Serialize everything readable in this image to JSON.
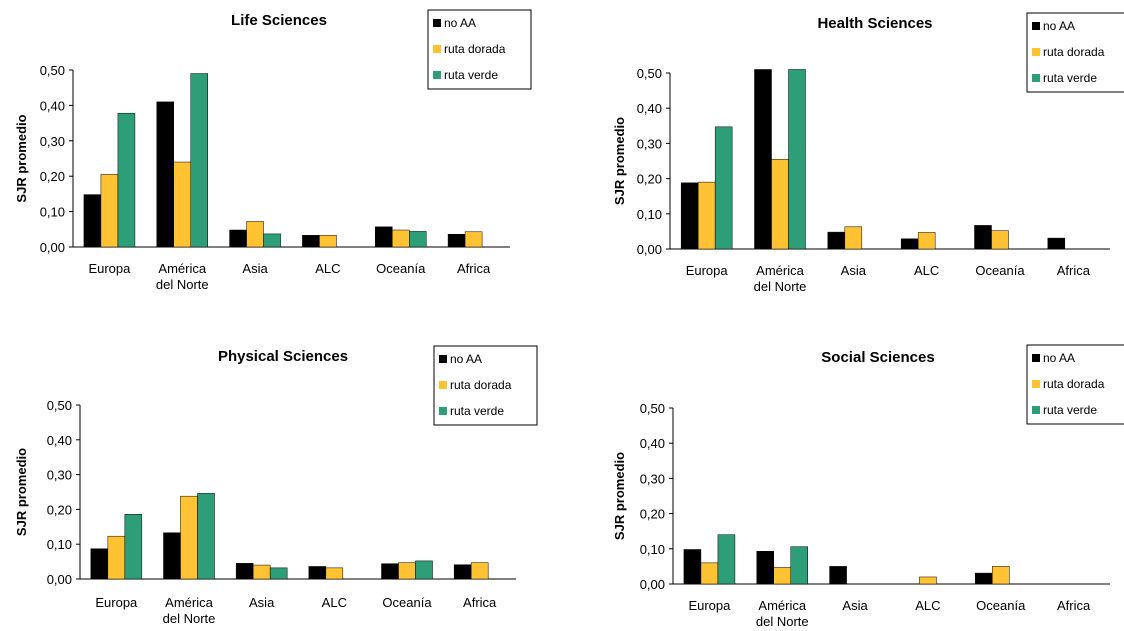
{
  "colors": {
    "no_aa": "#000000",
    "ruta_dorada": "#FFC233",
    "ruta_verde": "#2E9E79"
  },
  "chart_data": [
    {
      "type": "bar",
      "title": "Life Sciences",
      "ylabel": "SJR promedio",
      "xlabel": "",
      "categories": [
        [
          "Europa"
        ],
        [
          "América",
          "del Norte"
        ],
        [
          "Asia"
        ],
        [
          "ALC"
        ],
        [
          "Oceanía"
        ],
        [
          "Africa"
        ]
      ],
      "yticks": [
        "0,00",
        "0,10",
        "0,20",
        "0,30",
        "0,40",
        "0,50"
      ],
      "ylim": [
        0,
        0.5
      ],
      "legend_placement": "top-right",
      "series": [
        {
          "name": "no AA",
          "values": [
            0.148,
            0.41,
            0.048,
            0.033,
            0.057,
            0.036
          ]
        },
        {
          "name": "ruta dorada",
          "values": [
            0.205,
            0.24,
            0.072,
            0.033,
            0.048,
            0.043
          ]
        },
        {
          "name": "ruta verde",
          "values": [
            0.378,
            0.49,
            0.037,
            0,
            0.044,
            0
          ]
        }
      ]
    },
    {
      "type": "bar",
      "title": "Health Sciences",
      "ylabel": "SJR promedio",
      "xlabel": "",
      "categories": [
        [
          "Europa"
        ],
        [
          "América",
          "del Norte"
        ],
        [
          "Asia"
        ],
        [
          "ALC"
        ],
        [
          "Oceanía"
        ],
        [
          "Africa"
        ]
      ],
      "yticks": [
        "0,00",
        "0,10",
        "0,20",
        "0,30",
        "0,40",
        "0,50"
      ],
      "ylim": [
        0,
        0.5
      ],
      "legend_placement": "top-right",
      "series": [
        {
          "name": "no AA",
          "values": [
            0.188,
            0.51,
            0.048,
            0.029,
            0.067,
            0.031
          ]
        },
        {
          "name": "ruta dorada",
          "values": [
            0.19,
            0.255,
            0.063,
            0.047,
            0.052,
            0
          ]
        },
        {
          "name": "ruta verde",
          "values": [
            0.347,
            0.51,
            0,
            0,
            0,
            0
          ]
        }
      ]
    },
    {
      "type": "bar",
      "title": "Physical Sciences",
      "ylabel": "SJR promedio",
      "xlabel": "",
      "categories": [
        [
          "Europa"
        ],
        [
          "América",
          "del Norte"
        ],
        [
          "Asia"
        ],
        [
          "ALC"
        ],
        [
          "Oceanía"
        ],
        [
          "Africa"
        ]
      ],
      "yticks": [
        "0,00",
        "0,10",
        "0,20",
        "0,30",
        "0,40",
        "0,50"
      ],
      "ylim": [
        0,
        0.5
      ],
      "legend_placement": "top-right",
      "series": [
        {
          "name": "no AA",
          "values": [
            0.087,
            0.133,
            0.045,
            0.036,
            0.044,
            0.041
          ]
        },
        {
          "name": "ruta dorada",
          "values": [
            0.123,
            0.238,
            0.04,
            0.032,
            0.047,
            0.047
          ]
        },
        {
          "name": "ruta verde",
          "values": [
            0.186,
            0.246,
            0.032,
            0,
            0.052,
            0
          ]
        }
      ]
    },
    {
      "type": "bar",
      "title": "Social Sciences",
      "ylabel": "SJR promedio",
      "xlabel": "",
      "categories": [
        [
          "Europa"
        ],
        [
          "América",
          "del Norte"
        ],
        [
          "Asia"
        ],
        [
          "ALC"
        ],
        [
          "Oceanía"
        ],
        [
          "Africa"
        ]
      ],
      "yticks": [
        "0,00",
        "0,10",
        "0,20",
        "0,30",
        "0,40",
        "0,50"
      ],
      "ylim": [
        0,
        0.5
      ],
      "legend_placement": "top-right",
      "series": [
        {
          "name": "no AA",
          "values": [
            0.098,
            0.093,
            0.05,
            0,
            0.031,
            0
          ]
        },
        {
          "name": "ruta dorada",
          "values": [
            0.06,
            0.047,
            0,
            0.02,
            0.05,
            0
          ]
        },
        {
          "name": "ruta verde",
          "values": [
            0.14,
            0.106,
            0,
            0,
            0,
            0
          ]
        }
      ]
    }
  ]
}
